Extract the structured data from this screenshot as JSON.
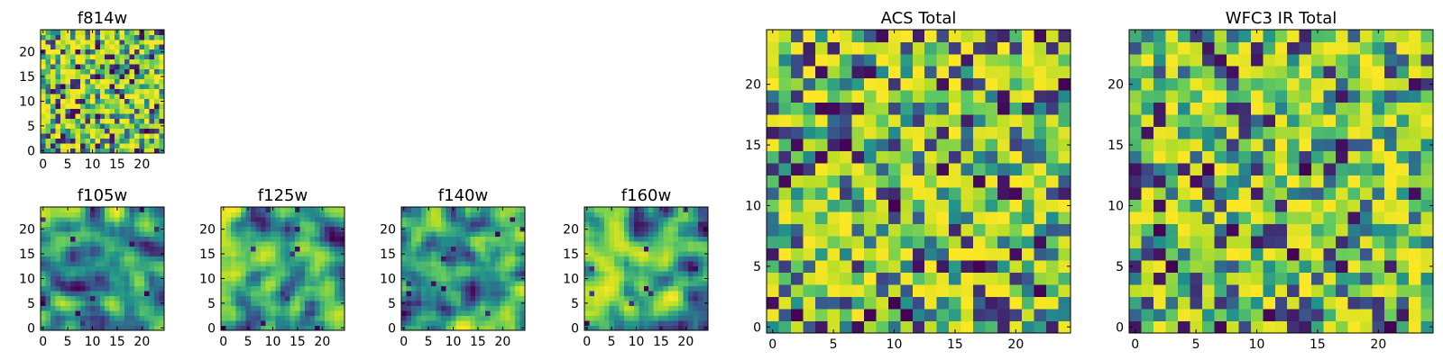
{
  "chart_data": [
    {
      "key": "f814w",
      "type": "heatmap",
      "title": "f814w",
      "size": [
        25,
        25
      ],
      "xlim": [
        0,
        24
      ],
      "ylim": [
        0,
        24
      ],
      "xticks": [
        "0",
        "5",
        "10",
        "15",
        "20"
      ],
      "yticks": [
        "0",
        "5",
        "10",
        "15",
        "20"
      ],
      "cmap": "viridis",
      "seed": 11,
      "smooth": 0
    },
    {
      "key": "f105w",
      "type": "heatmap",
      "title": "f105w",
      "size": [
        25,
        25
      ],
      "xlim": [
        0,
        24
      ],
      "ylim": [
        0,
        24
      ],
      "xticks": [
        "0",
        "5",
        "10",
        "15",
        "20"
      ],
      "yticks": [
        "0",
        "5",
        "10",
        "15",
        "20"
      ],
      "cmap": "viridis",
      "seed": 23,
      "smooth": 2
    },
    {
      "key": "f125w",
      "type": "heatmap",
      "title": "f125w",
      "size": [
        25,
        25
      ],
      "xlim": [
        0,
        24
      ],
      "ylim": [
        0,
        24
      ],
      "xticks": [
        "0",
        "5",
        "10",
        "15",
        "20"
      ],
      "yticks": [
        "0",
        "5",
        "10",
        "15",
        "20"
      ],
      "cmap": "viridis",
      "seed": 37,
      "smooth": 2
    },
    {
      "key": "f140w",
      "type": "heatmap",
      "title": "f140w",
      "size": [
        25,
        25
      ],
      "xlim": [
        0,
        24
      ],
      "ylim": [
        0,
        24
      ],
      "xticks": [
        "0",
        "5",
        "10",
        "15",
        "20"
      ],
      "yticks": [
        "0",
        "5",
        "10",
        "15",
        "20"
      ],
      "cmap": "viridis",
      "seed": 41,
      "smooth": 2
    },
    {
      "key": "f160w",
      "type": "heatmap",
      "title": "f160w",
      "size": [
        25,
        25
      ],
      "xlim": [
        0,
        24
      ],
      "ylim": [
        0,
        24
      ],
      "xticks": [
        "0",
        "5",
        "10",
        "15",
        "20"
      ],
      "yticks": [
        "0",
        "5",
        "10",
        "15",
        "20"
      ],
      "cmap": "viridis",
      "seed": 53,
      "smooth": 2
    },
    {
      "key": "acs_total",
      "type": "heatmap",
      "title": "ACS Total",
      "size": [
        25,
        25
      ],
      "xlim": [
        0,
        24
      ],
      "ylim": [
        0,
        24
      ],
      "xticks": [
        "0",
        "5",
        "10",
        "15",
        "20"
      ],
      "yticks": [
        "0",
        "5",
        "10",
        "15",
        "20"
      ],
      "cmap": "viridis",
      "seed": 67,
      "smooth": 0
    },
    {
      "key": "wfc3_ir_total",
      "type": "heatmap",
      "title": "WFC3 IR Total",
      "size": [
        25,
        25
      ],
      "xlim": [
        0,
        24
      ],
      "ylim": [
        0,
        24
      ],
      "xticks": [
        "0",
        "5",
        "10",
        "15",
        "20"
      ],
      "yticks": [
        "0",
        "5",
        "10",
        "15",
        "20"
      ],
      "cmap": "viridis",
      "seed": 79,
      "smooth": 0
    }
  ],
  "colors": {
    "viridis_stops": [
      "#440154",
      "#3b528b",
      "#21918c",
      "#5ec962",
      "#bddf26",
      "#fde725"
    ]
  }
}
